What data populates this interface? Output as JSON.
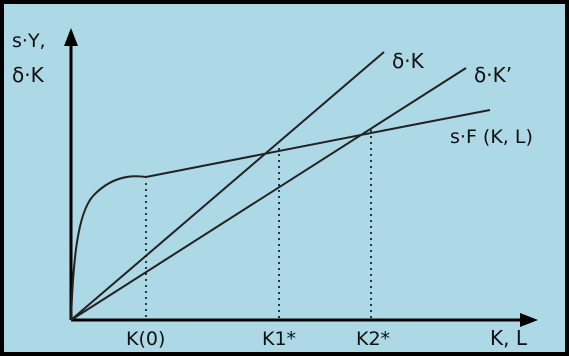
{
  "figure": {
    "background": "#add8e6",
    "axis_color": "#000000",
    "y_axis_label_line1": "s·Y,",
    "y_axis_label_line2": "δ·K",
    "x_axis_label": "K, L",
    "curves": {
      "production": "s·F (K, L)",
      "depreciation_1": "δ·K",
      "depreciation_2": "δ·K’"
    },
    "ticks": {
      "k0": "K(0)",
      "k1": "K1*",
      "k2": "K2*"
    }
  }
}
